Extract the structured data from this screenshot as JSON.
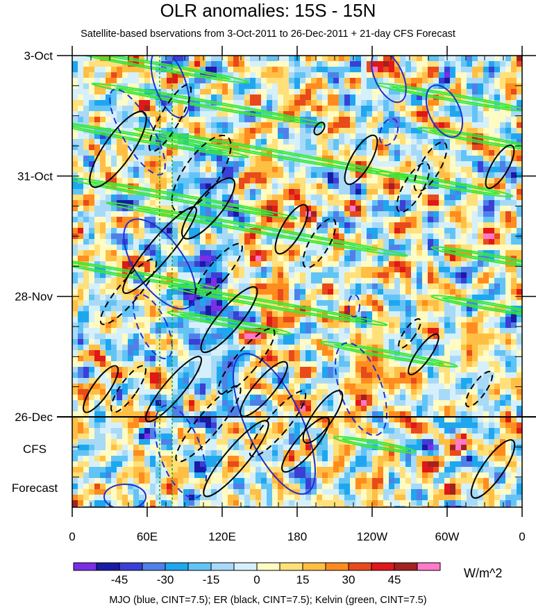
{
  "chart_data": {
    "type": "heatmap",
    "title": "OLR anomalies: 15S - 15N",
    "subtitle": "Satellite-based bservations from 3-Oct-2011 to 26-Dec-2011 + 21-day CFS Forecast",
    "x_ticks": [
      "0",
      "60E",
      "120E",
      "180",
      "120W",
      "60W",
      "0"
    ],
    "x_tick_longitudes": [
      0,
      60,
      120,
      180,
      240,
      300,
      360
    ],
    "y_ticks": [
      "3-Oct",
      "31-Oct",
      "28-Nov",
      "26-Dec"
    ],
    "y_tick_days": [
      0,
      28,
      56,
      84
    ],
    "y_range_days": [
      0,
      105
    ],
    "forecast_label_line1": "CFS",
    "forecast_label_line2": "Forecast",
    "observation_end_line": "26-Dec",
    "colorbar": {
      "units": "W/m^2",
      "tick_labels": [
        "-45",
        "-30",
        "-15",
        "0",
        "15",
        "30",
        "45"
      ],
      "levels": [
        -52.5,
        -45,
        -37.5,
        -30,
        -22.5,
        -15,
        -7.5,
        0,
        7.5,
        15,
        22.5,
        30,
        37.5,
        45,
        52.5
      ],
      "colors": [
        "#7b2ee6",
        "#1a1aa6",
        "#3b3fd6",
        "#4f80e8",
        "#1ea7ee",
        "#62c4f5",
        "#a8daf7",
        "#d6f0fb",
        "#fffbc4",
        "#ffe07a",
        "#ffbf45",
        "#ff8c1f",
        "#e84a1c",
        "#e01818",
        "#a32121",
        "#ff7ac8"
      ]
    },
    "contour_legend": "MJO (blue, CINT=7.5); ER (black, CINT=7.5); Kelvin (green, CINT=7.5)",
    "contour_colors": {
      "MJO": "#1f2fd1",
      "ER": "#000000",
      "Kelvin": "#38e838"
    },
    "vertical_reference_lines_longitude": [
      70,
      80
    ]
  }
}
